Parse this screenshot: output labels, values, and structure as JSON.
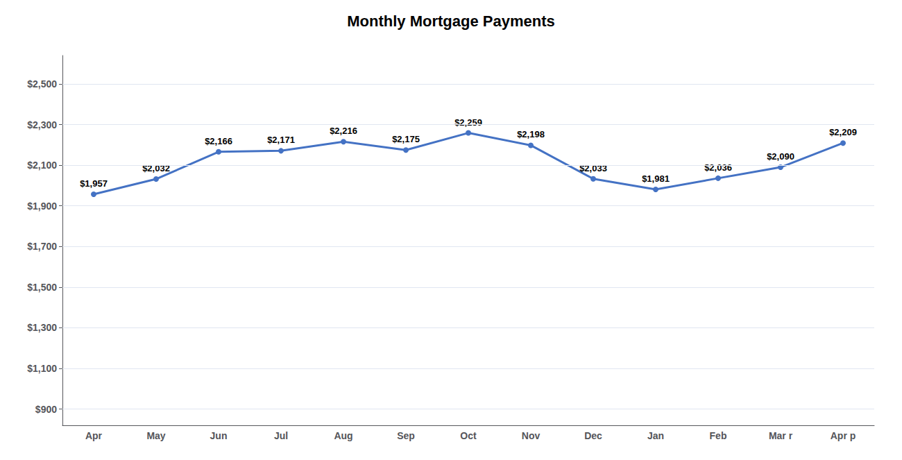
{
  "chart_data": {
    "type": "line",
    "title": "Monthly Mortgage Payments",
    "categories": [
      "Apr",
      "May",
      "Jun",
      "Jul",
      "Aug",
      "Sep",
      "Oct",
      "Nov",
      "Dec",
      "Jan",
      "Feb",
      "Mar r",
      "Apr p"
    ],
    "values": [
      1957,
      2032,
      2166,
      2171,
      2216,
      2175,
      2259,
      2198,
      2033,
      1981,
      2036,
      2090,
      2209
    ],
    "value_labels": [
      "$1,957",
      "$2,032",
      "$2,166",
      "$2,171",
      "$2,216",
      "$2,175",
      "$2,259",
      "$2,198",
      "$2,033",
      "$1,981",
      "$2,036",
      "$2,090",
      "$2,209"
    ],
    "data_labels": true,
    "color": "#4472C4",
    "marker": "circle",
    "ylim": [
      820,
      2640
    ],
    "yticks": [
      {
        "value": 900,
        "label": "$900"
      },
      {
        "value": 1100,
        "label": "$1,100"
      },
      {
        "value": 1300,
        "label": "$1,300"
      },
      {
        "value": 1500,
        "label": "$1,500"
      },
      {
        "value": 1700,
        "label": "$1,700"
      },
      {
        "value": 1900,
        "label": "$1,900"
      },
      {
        "value": 2100,
        "label": "$2,100"
      },
      {
        "value": 2300,
        "label": "$2,300"
      },
      {
        "value": 2500,
        "label": "$2,500"
      }
    ],
    "grid": true
  }
}
